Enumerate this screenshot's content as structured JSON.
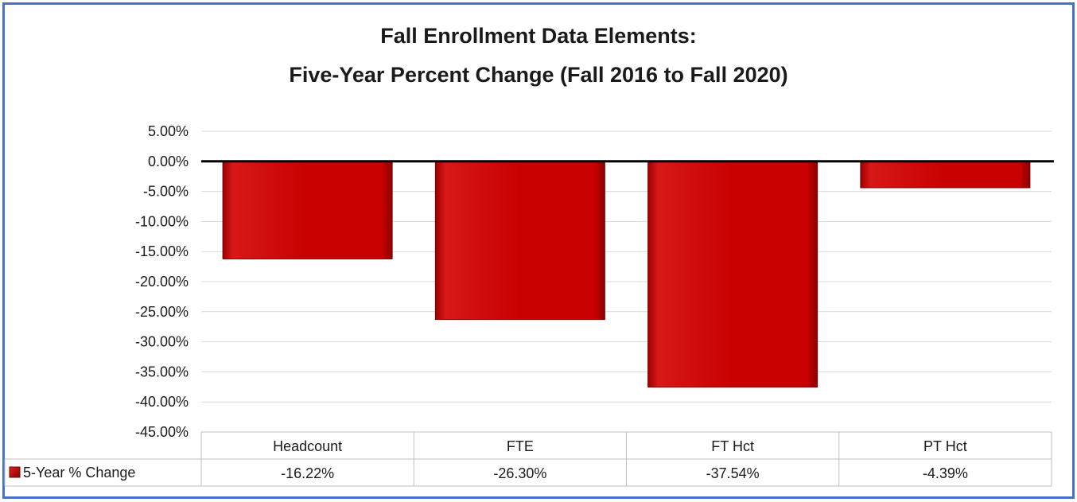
{
  "chart_data": {
    "type": "bar",
    "title_lines": [
      "Fall Enrollment Data Elements:",
      "Five-Year Percent Change (Fall 2016 to Fall 2020)"
    ],
    "categories": [
      "Headcount",
      "FTE",
      "FT Hct",
      "PT Hct"
    ],
    "series": [
      {
        "name": "5-Year % Change",
        "values": [
          -16.22,
          -26.3,
          -37.54,
          -4.39
        ],
        "color": "#c00000"
      }
    ],
    "data_table_values": [
      "-16.22%",
      "-26.30%",
      "-37.54%",
      "-4.39%"
    ],
    "y_ticks": [
      "5.00%",
      "0.00%",
      "-5.00%",
      "-10.00%",
      "-15.00%",
      "-20.00%",
      "-25.00%",
      "-30.00%",
      "-35.00%",
      "-40.00%",
      "-45.00%"
    ],
    "ylim": [
      -45,
      5
    ],
    "grid": true,
    "legend": "data-table",
    "colors": {
      "border": "#4472c4",
      "bar": "#c00000",
      "grid": "#d9d9d9"
    }
  }
}
